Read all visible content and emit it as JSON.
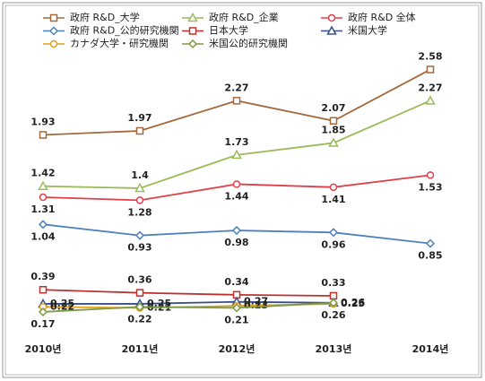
{
  "chart_data": {
    "type": "line",
    "categories": [
      "2010년",
      "2011년",
      "2012년",
      "2013년",
      "2014년"
    ],
    "ylim": [
      0,
      3.2
    ],
    "series": [
      {
        "name": "政府 R&D_大学",
        "color": "#a5683a",
        "marker": "square",
        "label_position": "above",
        "values": [
          1.93,
          1.97,
          2.27,
          2.07,
          2.58
        ]
      },
      {
        "name": "政府 R&D_企業",
        "color": "#9bbb59",
        "marker": "triangle",
        "label_position": "above",
        "values": [
          1.42,
          1.4,
          1.73,
          1.85,
          2.27
        ]
      },
      {
        "name": "政府 R&D 全体",
        "color": "#e0404a",
        "marker": "circle",
        "label_position": "below",
        "values": [
          1.31,
          1.28,
          1.44,
          1.41,
          1.53
        ]
      },
      {
        "name": "政府 R&D_公的研究機関",
        "color": "#4f81bd",
        "marker": "diamond",
        "label_position": "below",
        "values": [
          1.04,
          0.93,
          0.98,
          0.96,
          0.85
        ]
      },
      {
        "name": "日本大学",
        "color": "#c0302f",
        "marker": "square",
        "label_position": "above",
        "values": [
          0.39,
          0.36,
          0.34,
          0.33,
          null
        ]
      },
      {
        "name": "米国大学",
        "color": "#3a4f8a",
        "marker": "triangle",
        "label_position": "right",
        "values": [
          0.25,
          0.25,
          0.27,
          0.26,
          null
        ]
      },
      {
        "name": "カナダ大学・研究機関",
        "color": "#e0a020",
        "marker": "circle",
        "label_position": "right",
        "values": [
          0.22,
          0.21,
          0.23,
          0.25,
          null
        ]
      },
      {
        "name": "米国公的研究機関",
        "color": "#7f9a45",
        "marker": "diamond",
        "label_position": "below",
        "values": [
          0.17,
          0.22,
          0.21,
          0.26,
          null
        ]
      }
    ]
  }
}
